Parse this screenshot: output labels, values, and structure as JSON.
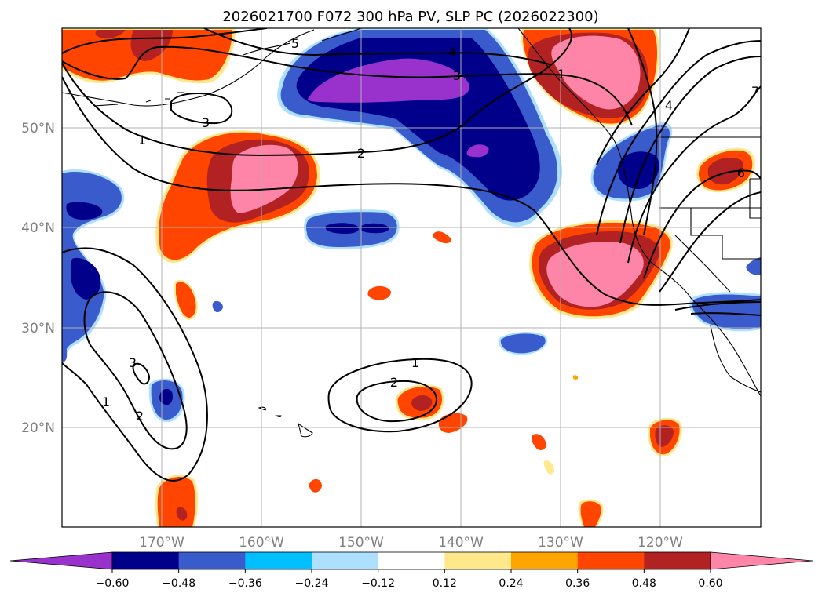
{
  "chart_data": {
    "type": "contour-map",
    "title": "2026021700 F072 300 hPa PV, SLP PC (2026022300)",
    "lat_ticks": [
      "50°N",
      "40°N",
      "30°N",
      "20°N"
    ],
    "lon_ticks": [
      "170°W",
      "160°W",
      "150°W",
      "140°W",
      "130°W",
      "120°W"
    ],
    "lon_range": [
      -180,
      -110
    ],
    "lat_range": [
      10,
      60
    ],
    "grid": true,
    "colorbar": {
      "orientation": "horizontal",
      "extend": "both",
      "levels": [
        -0.6,
        -0.48,
        -0.36,
        -0.24,
        -0.12,
        0.12,
        0.24,
        0.36,
        0.48,
        0.6
      ],
      "tick_labels": [
        "−0.60",
        "−0.48",
        "−0.36",
        "−0.24",
        "−0.12",
        "0.12",
        "0.24",
        "0.36",
        "0.48",
        "0.60"
      ],
      "colors": [
        "#9932CC",
        "#00008B",
        "#3A5BCC",
        "#00BFFF",
        "#ADDFFF",
        "#FFFFFF",
        "#FFE88C",
        "#FFA500",
        "#FF4500",
        "#B22222",
        "#FF85A8"
      ]
    },
    "contour_levels": [
      "5",
      "4",
      "3",
      "3",
      "2",
      "1",
      "1",
      "2",
      "1",
      "3",
      "2",
      "1",
      "7",
      "4",
      "6"
    ],
    "contour_label_count": 15
  }
}
